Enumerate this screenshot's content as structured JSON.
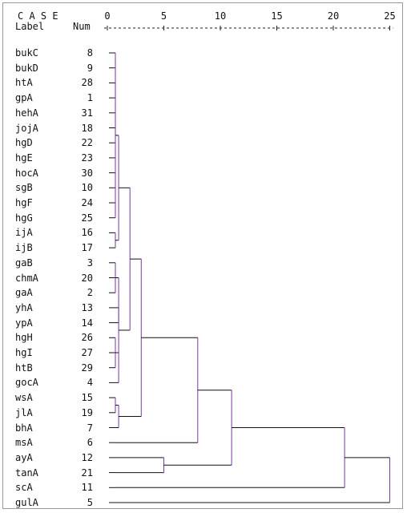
{
  "header": {
    "title": "C A S E",
    "label_col": "Label",
    "num_col": "Num",
    "axis_ticks": [
      "0",
      "5",
      "10",
      "15",
      "20",
      "25"
    ]
  },
  "leaves": [
    {
      "label": "bukC",
      "num": "8"
    },
    {
      "label": "bukD",
      "num": "9"
    },
    {
      "label": "htA",
      "num": "28"
    },
    {
      "label": "gpA",
      "num": "1"
    },
    {
      "label": "hehA",
      "num": "31"
    },
    {
      "label": "jojA",
      "num": "18"
    },
    {
      "label": "hgD",
      "num": "22"
    },
    {
      "label": "hgE",
      "num": "23"
    },
    {
      "label": "hocA",
      "num": "30"
    },
    {
      "label": "sgB",
      "num": "10"
    },
    {
      "label": "hgF",
      "num": "24"
    },
    {
      "label": "hgG",
      "num": "25"
    },
    {
      "label": "ijA",
      "num": "16"
    },
    {
      "label": "ijB",
      "num": "17"
    },
    {
      "label": "gaB",
      "num": "3"
    },
    {
      "label": "chmA",
      "num": "20"
    },
    {
      "label": "gaA",
      "num": "2"
    },
    {
      "label": "yhA",
      "num": "13"
    },
    {
      "label": "ypA",
      "num": "14"
    },
    {
      "label": "hgH",
      "num": "26"
    },
    {
      "label": "hgI",
      "num": "27"
    },
    {
      "label": "htB",
      "num": "29"
    },
    {
      "label": "gocA",
      "num": "4"
    },
    {
      "label": "wsA",
      "num": "15"
    },
    {
      "label": "jlA",
      "num": "19"
    },
    {
      "label": "bhA",
      "num": "7"
    },
    {
      "label": "msA",
      "num": "6"
    },
    {
      "label": "ayA",
      "num": "12"
    },
    {
      "label": "tanA",
      "num": "21"
    },
    {
      "label": "scA",
      "num": "11"
    },
    {
      "label": "gulA",
      "num": "5"
    }
  ],
  "merges": [
    {
      "id": "A",
      "children": [
        0,
        1,
        2,
        3,
        4,
        5,
        6,
        7,
        8,
        9,
        10,
        11
      ],
      "height": 0.5
    },
    {
      "id": "B",
      "children": [
        12,
        13
      ],
      "height": 0.5
    },
    {
      "id": "C",
      "children": [
        "A",
        "B"
      ],
      "height": 1.0
    },
    {
      "id": "D",
      "children": [
        14,
        15,
        16
      ],
      "height": 0.5
    },
    {
      "id": "E",
      "children": [
        17,
        18
      ],
      "height": 1.0
    },
    {
      "id": "F",
      "children": [
        19,
        20,
        21
      ],
      "height": 0.5
    },
    {
      "id": "G",
      "children": [
        "D",
        "E",
        "F",
        22
      ],
      "height": 1.0
    },
    {
      "id": "H",
      "children": [
        23,
        24
      ],
      "height": 0.5
    },
    {
      "id": "I",
      "children": [
        "H",
        25
      ],
      "height": 1.0
    },
    {
      "id": "J",
      "children": [
        "C",
        "G"
      ],
      "height": 2.0
    },
    {
      "id": "K",
      "children": [
        "J",
        "I"
      ],
      "height": 3.0
    },
    {
      "id": "L",
      "children": [
        "K",
        26
      ],
      "height": 8.0
    },
    {
      "id": "M",
      "children": [
        27,
        28
      ],
      "height": 5.0
    },
    {
      "id": "N",
      "children": [
        "L",
        "M"
      ],
      "height": 11.0
    },
    {
      "id": "O",
      "children": [
        "N",
        29
      ],
      "height": 21.0
    },
    {
      "id": "P",
      "children": [
        "O",
        30
      ],
      "height": 25.0
    }
  ]
}
